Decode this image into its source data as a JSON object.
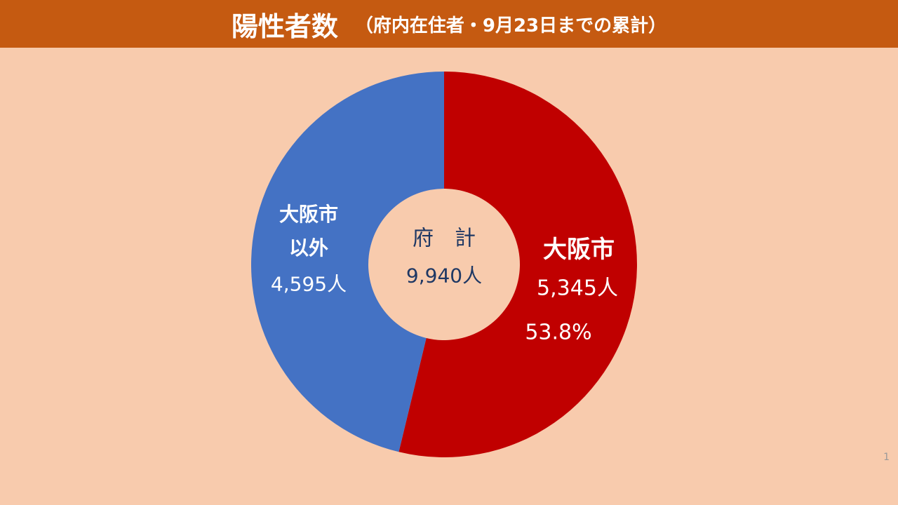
{
  "header": {
    "title": "陽性者数",
    "subtitle": "（府内在住者・9月23日までの累計）"
  },
  "chart_data": {
    "type": "donut",
    "categories": [
      "大阪市",
      "大阪市\n以外"
    ],
    "values": [
      5345,
      4595
    ],
    "value_labels": [
      "5,345人",
      "4,595人"
    ],
    "colors": [
      "#c00000",
      "#4472c4"
    ],
    "percent_label": "53.8%",
    "center_title": "府　計",
    "center_total": "9,940人"
  },
  "page_number": "1"
}
